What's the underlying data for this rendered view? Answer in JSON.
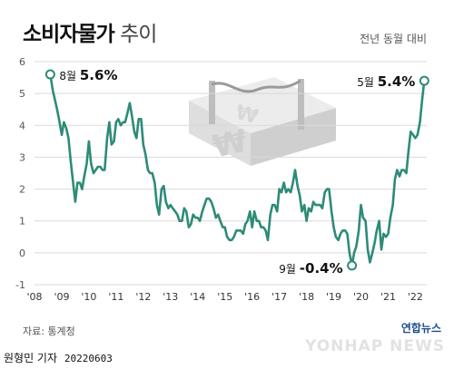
{
  "header": {
    "title_bold": "소비자물가",
    "title_light": "추이",
    "subtitle": "전년 동월 대비"
  },
  "footer": {
    "source": "자료: 통계청",
    "reporter": "원형민 기자",
    "date": "20220603",
    "logo_text": "연합뉴스",
    "watermark": "YONHAP NEWS"
  },
  "colors": {
    "line": "#2e8b78",
    "grid": "#d9d9d9",
    "text": "#222222"
  },
  "chart_data": {
    "type": "line",
    "title": "소비자물가 추이",
    "subtitle": "전년 동월 대비",
    "xlabel": "",
    "ylabel": "",
    "xlim": [
      2008.0,
      2022.42
    ],
    "ylim": [
      -1,
      6
    ],
    "yticks": [
      -1,
      0,
      1,
      2,
      3,
      4,
      5,
      6
    ],
    "xticks": [
      "'08",
      "'09",
      "'10",
      "'11",
      "'12",
      "'13",
      "'14",
      "'15",
      "'16",
      "'17",
      "'18",
      "'19",
      "'20",
      "'21",
      "'22"
    ],
    "grid": true,
    "annotations": [
      {
        "label_month": "8월",
        "label_value": "5.6%",
        "x": 2008.58,
        "y": 5.6
      },
      {
        "label_month": "9월",
        "label_value": "-0.4%",
        "x": 2019.67,
        "y": -0.4
      },
      {
        "label_month": "5월",
        "label_value": "5.4%",
        "x": 2022.33,
        "y": 5.4
      }
    ],
    "series": [
      {
        "values": [
          [
            2008.58,
            5.6
          ],
          [
            2008.67,
            5.1
          ],
          [
            2008.75,
            4.8
          ],
          [
            2008.83,
            4.5
          ],
          [
            2008.92,
            4.1
          ],
          [
            2009.0,
            3.7
          ],
          [
            2009.08,
            4.1
          ],
          [
            2009.17,
            3.9
          ],
          [
            2009.25,
            3.6
          ],
          [
            2009.33,
            2.9
          ],
          [
            2009.42,
            2.2
          ],
          [
            2009.5,
            1.6
          ],
          [
            2009.58,
            2.2
          ],
          [
            2009.67,
            2.2
          ],
          [
            2009.75,
            2.0
          ],
          [
            2009.83,
            2.4
          ],
          [
            2009.92,
            2.8
          ],
          [
            2010.0,
            3.5
          ],
          [
            2010.08,
            2.8
          ],
          [
            2010.17,
            2.5
          ],
          [
            2010.25,
            2.6
          ],
          [
            2010.33,
            2.7
          ],
          [
            2010.42,
            2.7
          ],
          [
            2010.5,
            2.6
          ],
          [
            2010.58,
            2.6
          ],
          [
            2010.67,
            3.6
          ],
          [
            2010.75,
            4.1
          ],
          [
            2010.83,
            3.4
          ],
          [
            2010.92,
            3.5
          ],
          [
            2011.0,
            4.1
          ],
          [
            2011.08,
            4.2
          ],
          [
            2011.17,
            4.0
          ],
          [
            2011.25,
            4.1
          ],
          [
            2011.33,
            4.1
          ],
          [
            2011.42,
            4.4
          ],
          [
            2011.5,
            4.7
          ],
          [
            2011.58,
            4.3
          ],
          [
            2011.67,
            3.8
          ],
          [
            2011.75,
            3.6
          ],
          [
            2011.83,
            4.2
          ],
          [
            2011.92,
            4.2
          ],
          [
            2012.0,
            3.4
          ],
          [
            2012.08,
            3.1
          ],
          [
            2012.17,
            2.6
          ],
          [
            2012.25,
            2.5
          ],
          [
            2012.33,
            2.5
          ],
          [
            2012.42,
            2.2
          ],
          [
            2012.5,
            1.5
          ],
          [
            2012.58,
            1.2
          ],
          [
            2012.67,
            2.0
          ],
          [
            2012.75,
            2.1
          ],
          [
            2012.83,
            1.6
          ],
          [
            2012.92,
            1.4
          ],
          [
            2013.0,
            1.5
          ],
          [
            2013.08,
            1.4
          ],
          [
            2013.17,
            1.3
          ],
          [
            2013.25,
            1.2
          ],
          [
            2013.33,
            1.0
          ],
          [
            2013.42,
            1.0
          ],
          [
            2013.5,
            1.4
          ],
          [
            2013.58,
            1.3
          ],
          [
            2013.67,
            0.8
          ],
          [
            2013.75,
            0.9
          ],
          [
            2013.83,
            1.2
          ],
          [
            2013.92,
            1.1
          ],
          [
            2014.0,
            1.1
          ],
          [
            2014.08,
            1.0
          ],
          [
            2014.17,
            1.3
          ],
          [
            2014.25,
            1.5
          ],
          [
            2014.33,
            1.7
          ],
          [
            2014.42,
            1.7
          ],
          [
            2014.5,
            1.6
          ],
          [
            2014.58,
            1.4
          ],
          [
            2014.67,
            1.1
          ],
          [
            2014.75,
            1.2
          ],
          [
            2014.83,
            1.0
          ],
          [
            2014.92,
            0.8
          ],
          [
            2015.0,
            0.8
          ],
          [
            2015.08,
            0.5
          ],
          [
            2015.17,
            0.4
          ],
          [
            2015.25,
            0.4
          ],
          [
            2015.33,
            0.5
          ],
          [
            2015.42,
            0.7
          ],
          [
            2015.5,
            0.7
          ],
          [
            2015.58,
            0.7
          ],
          [
            2015.67,
            0.6
          ],
          [
            2015.75,
            0.9
          ],
          [
            2015.83,
            1.0
          ],
          [
            2015.92,
            1.3
          ],
          [
            2016.0,
            0.8
          ],
          [
            2016.08,
            1.3
          ],
          [
            2016.17,
            1.0
          ],
          [
            2016.25,
            1.0
          ],
          [
            2016.33,
            0.8
          ],
          [
            2016.42,
            0.8
          ],
          [
            2016.5,
            0.7
          ],
          [
            2016.58,
            0.4
          ],
          [
            2016.67,
            1.2
          ],
          [
            2016.75,
            1.5
          ],
          [
            2016.83,
            1.5
          ],
          [
            2016.92,
            1.3
          ],
          [
            2017.0,
            2.0
          ],
          [
            2017.08,
            1.9
          ],
          [
            2017.17,
            2.2
          ],
          [
            2017.25,
            1.9
          ],
          [
            2017.33,
            2.0
          ],
          [
            2017.42,
            1.9
          ],
          [
            2017.5,
            2.2
          ],
          [
            2017.58,
            2.6
          ],
          [
            2017.67,
            2.1
          ],
          [
            2017.75,
            1.8
          ],
          [
            2017.83,
            1.3
          ],
          [
            2017.92,
            1.5
          ],
          [
            2018.0,
            1.0
          ],
          [
            2018.08,
            1.4
          ],
          [
            2018.17,
            1.3
          ],
          [
            2018.25,
            1.6
          ],
          [
            2018.33,
            1.5
          ],
          [
            2018.42,
            1.5
          ],
          [
            2018.5,
            1.5
          ],
          [
            2018.58,
            1.4
          ],
          [
            2018.67,
            1.9
          ],
          [
            2018.75,
            2.0
          ],
          [
            2018.83,
            2.0
          ],
          [
            2018.92,
            1.3
          ],
          [
            2019.0,
            0.8
          ],
          [
            2019.08,
            0.5
          ],
          [
            2019.17,
            0.4
          ],
          [
            2019.25,
            0.6
          ],
          [
            2019.33,
            0.7
          ],
          [
            2019.42,
            0.7
          ],
          [
            2019.5,
            0.6
          ],
          [
            2019.58,
            0.0
          ],
          [
            2019.67,
            -0.4
          ],
          [
            2019.75,
            0.0
          ],
          [
            2019.83,
            0.2
          ],
          [
            2019.92,
            0.7
          ],
          [
            2020.0,
            1.5
          ],
          [
            2020.08,
            1.1
          ],
          [
            2020.17,
            1.0
          ],
          [
            2020.25,
            0.1
          ],
          [
            2020.33,
            -0.3
          ],
          [
            2020.42,
            0.0
          ],
          [
            2020.5,
            0.3
          ],
          [
            2020.58,
            0.7
          ],
          [
            2020.67,
            1.0
          ],
          [
            2020.75,
            0.1
          ],
          [
            2020.83,
            0.6
          ],
          [
            2020.92,
            0.5
          ],
          [
            2021.0,
            0.6
          ],
          [
            2021.08,
            1.1
          ],
          [
            2021.17,
            1.5
          ],
          [
            2021.25,
            2.3
          ],
          [
            2021.33,
            2.6
          ],
          [
            2021.42,
            2.4
          ],
          [
            2021.5,
            2.6
          ],
          [
            2021.58,
            2.6
          ],
          [
            2021.67,
            2.5
          ],
          [
            2021.75,
            3.2
          ],
          [
            2021.83,
            3.8
          ],
          [
            2021.92,
            3.7
          ],
          [
            2022.0,
            3.6
          ],
          [
            2022.08,
            3.7
          ],
          [
            2022.17,
            4.1
          ],
          [
            2022.25,
            4.8
          ],
          [
            2022.33,
            5.4
          ]
        ]
      }
    ]
  }
}
